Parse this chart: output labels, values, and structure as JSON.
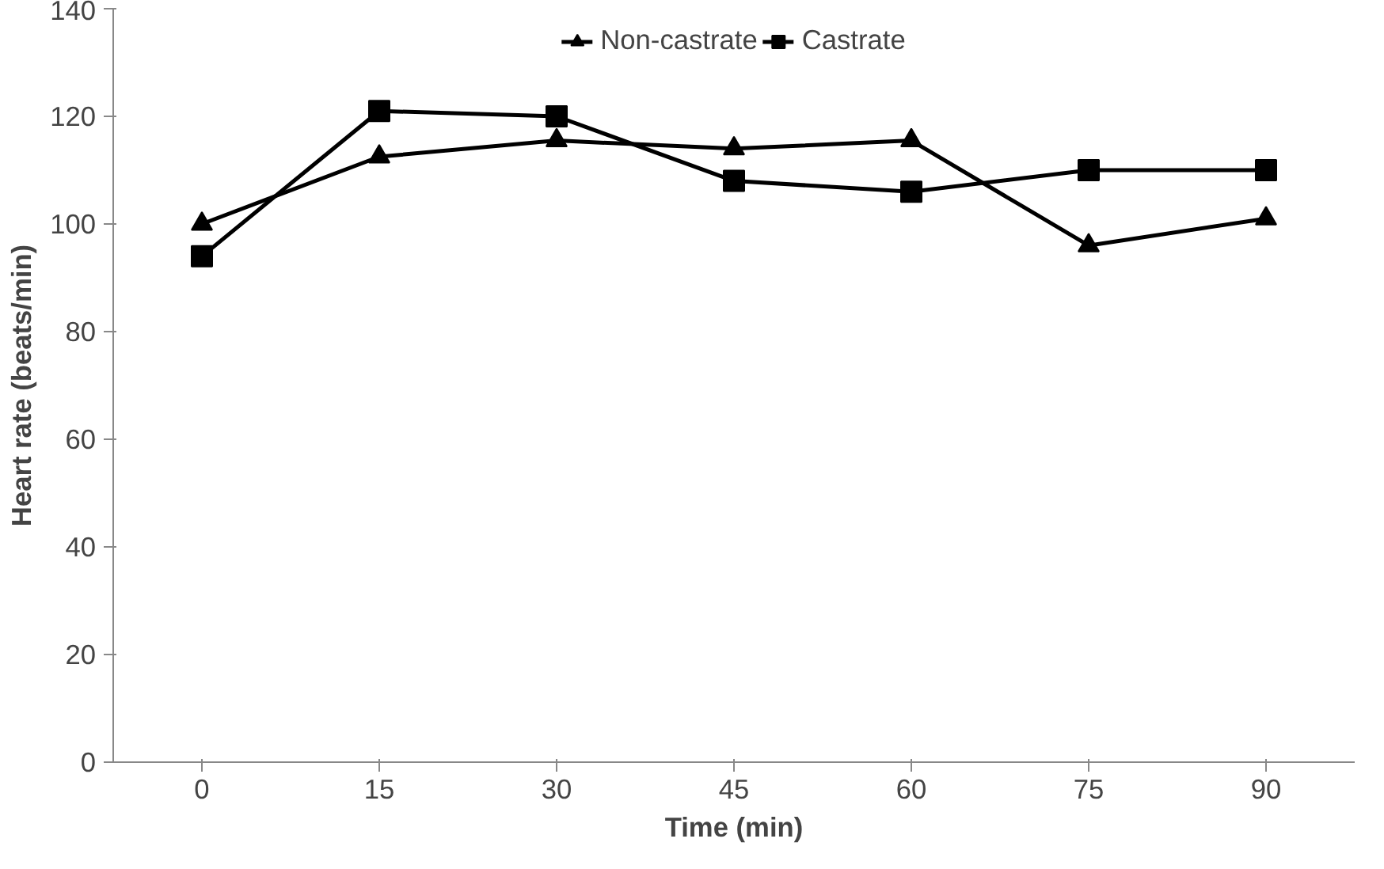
{
  "chart_data": {
    "type": "line",
    "xlabel": "Time (min)",
    "ylabel": "Heart rate (beats/min)",
    "categories": [
      "0",
      "15",
      "30",
      "45",
      "60",
      "75",
      "90"
    ],
    "ylim": [
      0,
      140
    ],
    "yticks": [
      0,
      20,
      40,
      60,
      80,
      100,
      120,
      140
    ],
    "grid": false,
    "legend": "top",
    "series": [
      {
        "name": "Non-castrate",
        "color": "#000000",
        "marker": "triangle",
        "values": [
          100,
          112.5,
          115.5,
          114,
          115.5,
          96,
          101
        ]
      },
      {
        "name": "Castrate",
        "color": "#000000",
        "marker": "square",
        "values": [
          94,
          121,
          120,
          108,
          106,
          110,
          110
        ]
      }
    ]
  }
}
